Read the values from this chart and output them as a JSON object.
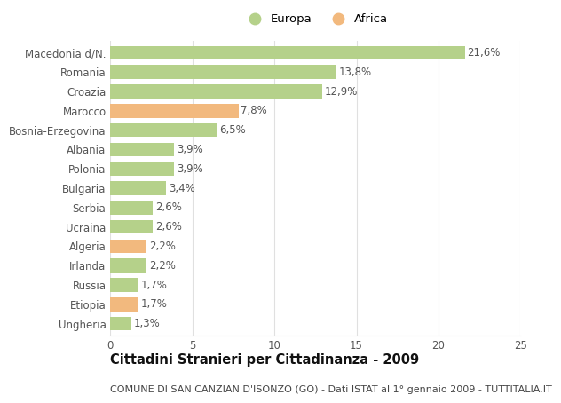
{
  "categories": [
    "Macedonia d/N.",
    "Romania",
    "Croazia",
    "Marocco",
    "Bosnia-Erzegovina",
    "Albania",
    "Polonia",
    "Bulgaria",
    "Serbia",
    "Ucraina",
    "Algeria",
    "Irlanda",
    "Russia",
    "Etiopia",
    "Ungheria"
  ],
  "values": [
    21.6,
    13.8,
    12.9,
    7.8,
    6.5,
    3.9,
    3.9,
    3.4,
    2.6,
    2.6,
    2.2,
    2.2,
    1.7,
    1.7,
    1.3
  ],
  "labels": [
    "21,6%",
    "13,8%",
    "12,9%",
    "7,8%",
    "6,5%",
    "3,9%",
    "3,9%",
    "3,4%",
    "2,6%",
    "2,6%",
    "2,2%",
    "2,2%",
    "1,7%",
    "1,7%",
    "1,3%"
  ],
  "colors": [
    "#b5d18a",
    "#b5d18a",
    "#b5d18a",
    "#f2b97e",
    "#b5d18a",
    "#b5d18a",
    "#b5d18a",
    "#b5d18a",
    "#b5d18a",
    "#b5d18a",
    "#f2b97e",
    "#b5d18a",
    "#b5d18a",
    "#f2b97e",
    "#b5d18a"
  ],
  "europa_color": "#b5d18a",
  "africa_color": "#f2b97e",
  "xlim": [
    0,
    25
  ],
  "xticks": [
    0,
    5,
    10,
    15,
    20,
    25
  ],
  "title": "Cittadini Stranieri per Cittadinanza - 2009",
  "subtitle": "COMUNE DI SAN CANZIAN D'ISONZO (GO) - Dati ISTAT al 1° gennaio 2009 - TUTTITALIA.IT",
  "background_color": "#ffffff",
  "grid_color": "#e0e0e0",
  "bar_height": 0.72,
  "label_fontsize": 8.5,
  "tick_fontsize": 8.5,
  "title_fontsize": 10.5,
  "subtitle_fontsize": 8,
  "legend_fontsize": 9.5
}
